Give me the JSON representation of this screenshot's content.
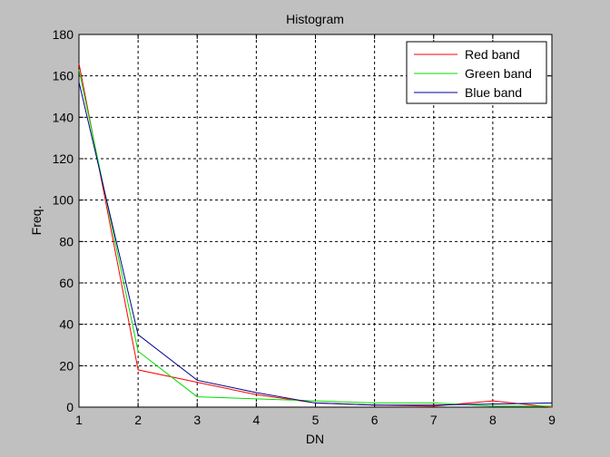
{
  "chart_data": {
    "type": "line",
    "title": "Histogram",
    "xlabel": "DN",
    "ylabel": "Freq.",
    "xlim": [
      1,
      9
    ],
    "ylim": [
      0,
      180
    ],
    "xticks": [
      1,
      2,
      3,
      4,
      5,
      6,
      7,
      8,
      9
    ],
    "yticks": [
      0,
      20,
      40,
      60,
      80,
      100,
      120,
      140,
      160,
      180
    ],
    "grid": true,
    "legend_position": "top-right",
    "x": [
      1,
      2,
      3,
      4,
      5,
      6,
      7,
      8,
      9
    ],
    "series": [
      {
        "name": "Red band",
        "color": "#ff0000",
        "values": [
          166,
          18,
          12,
          6,
          2,
          1,
          0.5,
          3,
          0
        ]
      },
      {
        "name": "Green band",
        "color": "#00dd00",
        "values": [
          163,
          27,
          5,
          4,
          3,
          2,
          2,
          0.5,
          0.5
        ]
      },
      {
        "name": "Blue band",
        "color": "#00008b",
        "values": [
          157,
          35,
          13,
          7,
          2,
          1,
          1,
          1.5,
          2
        ]
      }
    ]
  }
}
